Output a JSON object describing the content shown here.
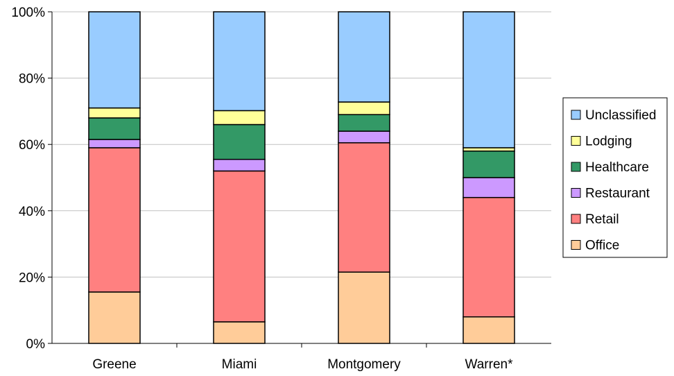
{
  "chart_data": {
    "type": "bar",
    "stacked": true,
    "percent_stacked": true,
    "categories": [
      "Greene",
      "Miami",
      "Montgomery",
      "Warren*"
    ],
    "series": [
      {
        "name": "Office",
        "values": [
          15.5,
          6.5,
          21.5,
          8.0
        ],
        "color": "#FFCC99"
      },
      {
        "name": "Retail",
        "values": [
          43.5,
          45.5,
          39.0,
          36.0
        ],
        "color": "#FF8080"
      },
      {
        "name": "Restaurant",
        "values": [
          2.5,
          3.5,
          3.5,
          6.0
        ],
        "color": "#CC99FF"
      },
      {
        "name": "Healthcare",
        "values": [
          6.5,
          10.5,
          5.0,
          8.0
        ],
        "color": "#339966"
      },
      {
        "name": "Lodging",
        "values": [
          3.0,
          4.2,
          3.8,
          1.0
        ],
        "color": "#FFFF99"
      },
      {
        "name": "Unclassified",
        "values": [
          29.0,
          29.8,
          27.2,
          41.0
        ],
        "color": "#99CCFF"
      }
    ],
    "ylim": [
      0,
      100
    ],
    "yticks": [
      "0%",
      "20%",
      "40%",
      "60%",
      "80%",
      "100%"
    ],
    "ytick_values": [
      0,
      20,
      40,
      60,
      80,
      100
    ],
    "grid": true,
    "legend_position": "right",
    "legend_order": [
      "Unclassified",
      "Lodging",
      "Healthcare",
      "Restaurant",
      "Retail",
      "Office"
    ],
    "title": "",
    "xlabel": "",
    "ylabel": ""
  }
}
